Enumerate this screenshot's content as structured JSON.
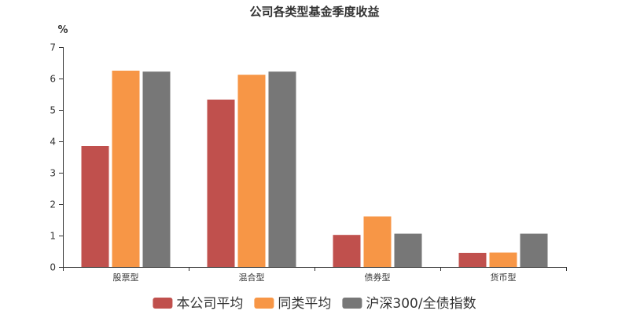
{
  "chart_data": {
    "type": "bar",
    "title": "公司各类型基金季度收益",
    "ylabel": "%",
    "xlabel": "",
    "ylim": [
      0,
      7
    ],
    "yticks": [
      0,
      1,
      2,
      3,
      4,
      5,
      6,
      7
    ],
    "grid": false,
    "legend_position": "bottom",
    "categories": [
      "股票型",
      "混合型",
      "债券型",
      "货币型"
    ],
    "series": [
      {
        "name": "本公司平均",
        "color": "#c0504d",
        "values": [
          3.85,
          5.33,
          1.02,
          0.45
        ]
      },
      {
        "name": "同类平均",
        "color": "#f79646",
        "values": [
          6.25,
          6.12,
          1.61,
          0.46
        ]
      },
      {
        "name": "沪深300/全债指数",
        "color": "#777777",
        "values": [
          6.22,
          6.22,
          1.06,
          1.06
        ]
      }
    ]
  }
}
